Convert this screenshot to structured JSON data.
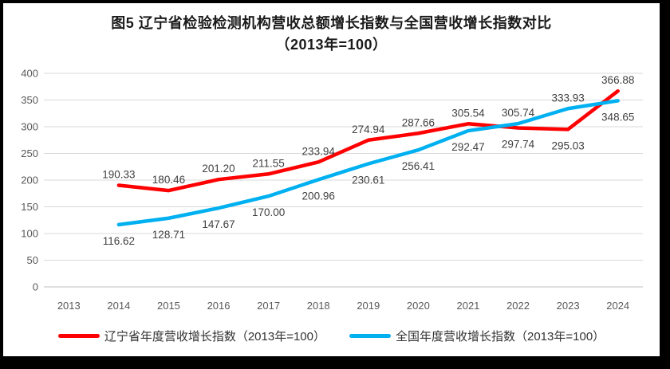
{
  "title": {
    "line1": "图5  辽宁省检验检测机构营收总额增长指数与全国营收增长指数对比",
    "line2": "（2013年=100）"
  },
  "chart_data": {
    "type": "line",
    "categories": [
      "2013",
      "2014",
      "2015",
      "2016",
      "2017",
      "2018",
      "2019",
      "2020",
      "2021",
      "2022",
      "2023",
      "2024"
    ],
    "ylim": [
      0,
      400
    ],
    "ytick_step": 50,
    "grid": true,
    "legend_position": "bottom",
    "data_labels": true,
    "series": [
      {
        "name": "辽宁省年度营收增长指数（2013年=100）",
        "color": "#FF0000",
        "start_index": 1,
        "values": [
          190.33,
          180.46,
          201.2,
          211.55,
          233.94,
          274.94,
          287.66,
          305.54,
          297.74,
          295.03,
          366.88
        ],
        "label_sides": [
          "above",
          "above",
          "above",
          "above",
          "above",
          "above",
          "above",
          "above",
          "below",
          "below",
          "above"
        ]
      },
      {
        "name": "全国年度营收增长指数（2013年=100）",
        "color": "#00B0F0",
        "start_index": 1,
        "values": [
          116.62,
          128.71,
          147.67,
          170.0,
          200.96,
          230.61,
          256.41,
          292.47,
          305.74,
          333.93,
          348.65
        ],
        "label_sides": [
          "below",
          "below",
          "below",
          "below",
          "below",
          "below",
          "below",
          "below",
          "above",
          "above",
          "below"
        ]
      }
    ]
  },
  "colors": {
    "gridline": "#D9D9D9",
    "axis_line": "#BFBFBF",
    "tick_label": "#595959",
    "data_label": "#404040"
  }
}
